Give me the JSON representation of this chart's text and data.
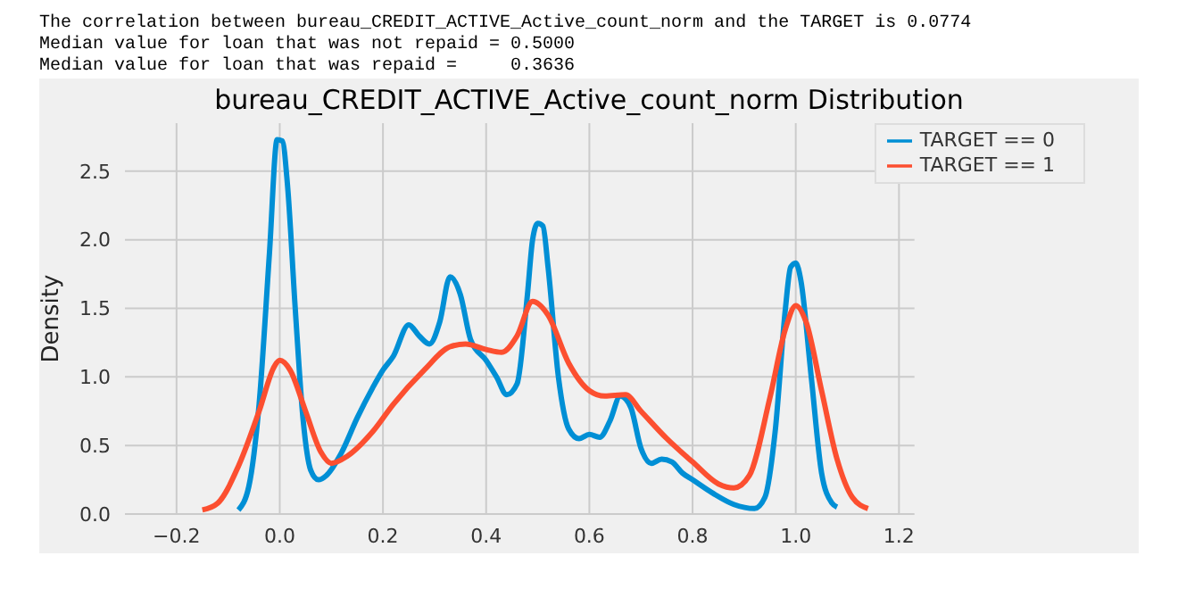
{
  "chart_data": {
    "type": "line",
    "title": "bureau_CREDIT_ACTIVE_Active_count_norm Distribution",
    "ylabel": "Density",
    "annotations": [
      "The correlation between bureau_CREDIT_ACTIVE_Active_count_norm and the TARGET is 0.0774",
      "Median value for loan that was not repaid = 0.5000",
      "Median value for loan that was repaid =     0.3636"
    ],
    "xlim": [
      -0.3,
      1.23
    ],
    "ylim": [
      0,
      2.85
    ],
    "xticks": [
      {
        "value": -0.2,
        "label": "−0.2"
      },
      {
        "value": 0,
        "label": "0.0"
      },
      {
        "value": 0.2,
        "label": "0.2"
      },
      {
        "value": 0.4,
        "label": "0.4"
      },
      {
        "value": 0.6,
        "label": "0.6"
      },
      {
        "value": 0.8,
        "label": "0.8"
      },
      {
        "value": 1,
        "label": "1.0"
      },
      {
        "value": 1.2,
        "label": "1.2"
      }
    ],
    "yticks": [
      {
        "value": 0,
        "label": "0.0"
      },
      {
        "value": 0.5,
        "label": "0.5"
      },
      {
        "value": 1,
        "label": "1.0"
      },
      {
        "value": 1.5,
        "label": "1.5"
      },
      {
        "value": 2,
        "label": "2.0"
      },
      {
        "value": 2.5,
        "label": "2.5"
      }
    ],
    "grid": true,
    "legend": "top right",
    "marker": "none",
    "line_style": "solid",
    "series": [
      {
        "name": "TARGET == 0",
        "color": "#008fd5",
        "x": [
          -0.08,
          -0.06,
          -0.04,
          -0.02,
          -0.005,
          0.005,
          0.015,
          0.03,
          0.045,
          0.06,
          0.075,
          0.09,
          0.12,
          0.15,
          0.18,
          0.2,
          0.22,
          0.25,
          0.27,
          0.29,
          0.31,
          0.33,
          0.35,
          0.37,
          0.4,
          0.42,
          0.44,
          0.46,
          0.48,
          0.49,
          0.5,
          0.51,
          0.52,
          0.54,
          0.56,
          0.58,
          0.6,
          0.62,
          0.64,
          0.66,
          0.68,
          0.7,
          0.72,
          0.74,
          0.76,
          0.78,
          0.8,
          0.84,
          0.88,
          0.92,
          0.94,
          0.96,
          0.98,
          0.99,
          1.0,
          1.01,
          1.03,
          1.05,
          1.07,
          1.08
        ],
        "values": [
          0.03,
          0.2,
          0.8,
          1.9,
          2.73,
          2.72,
          2.4,
          1.5,
          0.7,
          0.32,
          0.25,
          0.28,
          0.45,
          0.7,
          0.92,
          1.05,
          1.15,
          1.38,
          1.3,
          1.24,
          1.4,
          1.73,
          1.6,
          1.27,
          1.12,
          1.0,
          0.87,
          0.95,
          1.6,
          2.0,
          2.12,
          2.1,
          1.8,
          1.0,
          0.62,
          0.55,
          0.58,
          0.56,
          0.68,
          0.86,
          0.78,
          0.48,
          0.37,
          0.4,
          0.38,
          0.3,
          0.25,
          0.15,
          0.07,
          0.04,
          0.12,
          0.6,
          1.5,
          1.8,
          1.83,
          1.7,
          1.0,
          0.3,
          0.08,
          0.05
        ]
      },
      {
        "name": "TARGET == 1",
        "color": "#fc4f30",
        "x": [
          -0.15,
          -0.12,
          -0.08,
          -0.04,
          -0.01,
          0.0,
          0.02,
          0.05,
          0.08,
          0.1,
          0.13,
          0.18,
          0.22,
          0.28,
          0.33,
          0.36,
          0.4,
          0.43,
          0.46,
          0.49,
          0.52,
          0.56,
          0.6,
          0.63,
          0.67,
          0.7,
          0.75,
          0.8,
          0.85,
          0.88,
          0.91,
          0.95,
          0.98,
          1.0,
          1.02,
          1.05,
          1.08,
          1.11,
          1.14
        ],
        "values": [
          0.03,
          0.08,
          0.35,
          0.75,
          1.08,
          1.12,
          1.05,
          0.75,
          0.45,
          0.37,
          0.42,
          0.6,
          0.8,
          1.05,
          1.22,
          1.24,
          1.2,
          1.18,
          1.3,
          1.55,
          1.45,
          1.1,
          0.9,
          0.86,
          0.87,
          0.75,
          0.55,
          0.38,
          0.22,
          0.19,
          0.28,
          0.85,
          1.35,
          1.52,
          1.4,
          0.9,
          0.4,
          0.12,
          0.04
        ]
      }
    ]
  }
}
